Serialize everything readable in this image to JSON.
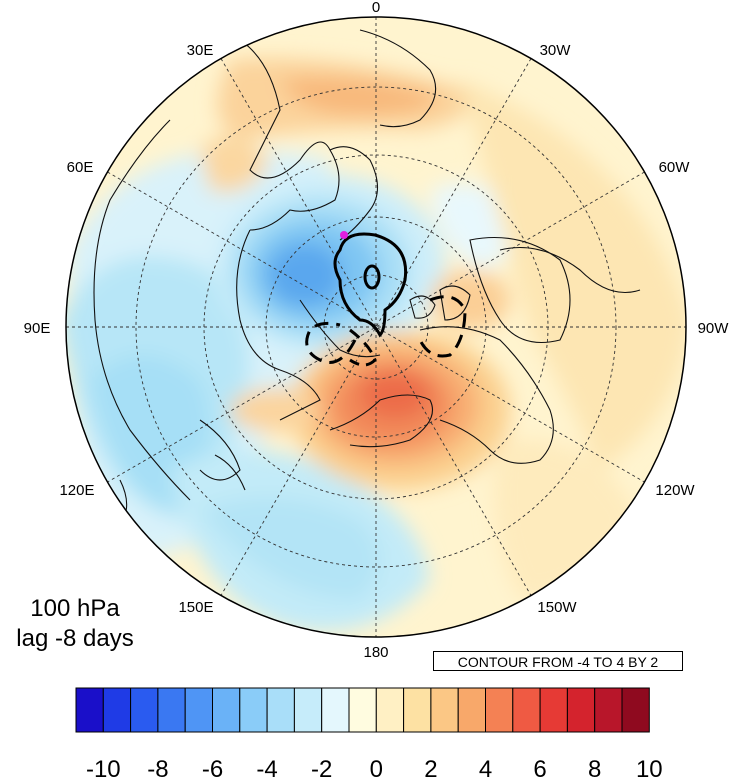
{
  "title": {
    "level": "100 hPa",
    "lag": "lag -8 days"
  },
  "contour_note": "CONTOUR FROM -4 TO 4 BY 2",
  "projection": "north polar stereographic",
  "longitude_labels": [
    {
      "text": "0",
      "lon": 0
    },
    {
      "text": "30W",
      "lon": -30
    },
    {
      "text": "60W",
      "lon": -60
    },
    {
      "text": "90W",
      "lon": -90
    },
    {
      "text": "120W",
      "lon": -120
    },
    {
      "text": "150W",
      "lon": -150
    },
    {
      "text": "180",
      "lon": 180
    },
    {
      "text": "150E",
      "lon": 150
    },
    {
      "text": "120E",
      "lon": 120
    },
    {
      "text": "90E",
      "lon": 90
    },
    {
      "text": "60E",
      "lon": 60
    },
    {
      "text": "30E",
      "lon": 30
    }
  ],
  "colorbar": {
    "colors": [
      "#1a0fc9",
      "#1f3be6",
      "#2a5bf0",
      "#3a78f2",
      "#4f95f5",
      "#6ab2f7",
      "#8accf8",
      "#a9def9",
      "#c6ecfa",
      "#e4f7fd",
      "#fffce0",
      "#fff0c4",
      "#fde1a3",
      "#fbc785",
      "#f8a86a",
      "#f48154",
      "#ef5a43",
      "#e63a35",
      "#d4232d",
      "#b8162a",
      "#8f0a1f"
    ],
    "tick_labels": [
      "-10",
      "-8",
      "-6",
      "-4",
      "-2",
      "0",
      "2",
      "4",
      "6",
      "8",
      "10"
    ]
  },
  "marker": {
    "color": "#e020e0",
    "label": "magenta star"
  }
}
